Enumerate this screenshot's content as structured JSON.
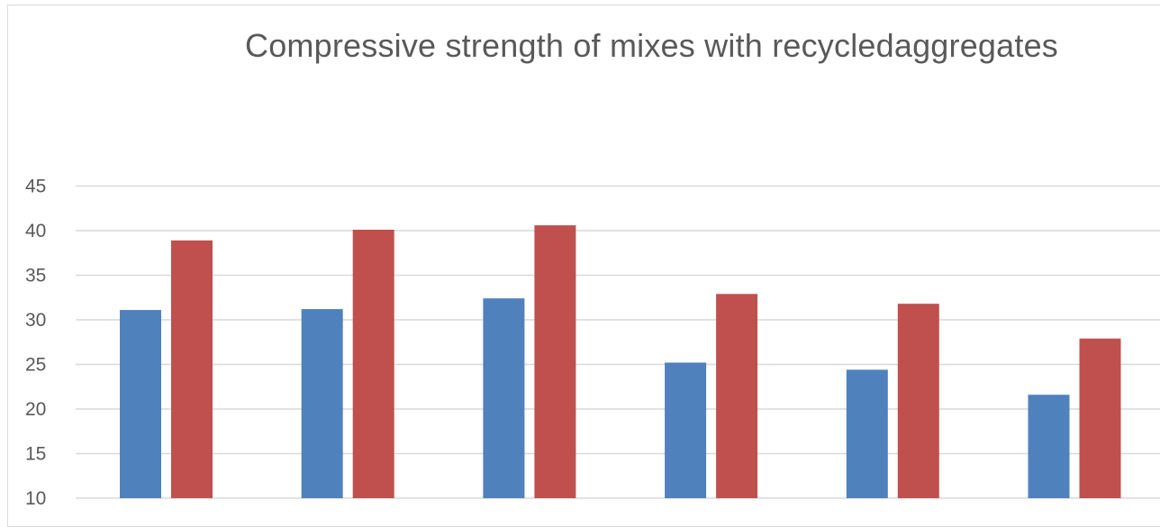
{
  "chart_data": {
    "type": "bar",
    "title": "Compressive strength of mixes with recycledaggregates",
    "xlabel": "",
    "ylabel": "",
    "ylim": [
      10,
      45
    ],
    "yticks": [
      10,
      15,
      20,
      25,
      30,
      35,
      40,
      45
    ],
    "grid": true,
    "categories": [
      "",
      "",
      "",
      "",
      "",
      ""
    ],
    "series": [
      {
        "color": "#4f81bd",
        "values": [
          31.1,
          31.2,
          32.4,
          25.2,
          24.4,
          21.6
        ]
      },
      {
        "color": "#c0504d",
        "values": [
          38.9,
          40.1,
          40.6,
          32.9,
          31.8,
          27.9
        ]
      }
    ]
  }
}
